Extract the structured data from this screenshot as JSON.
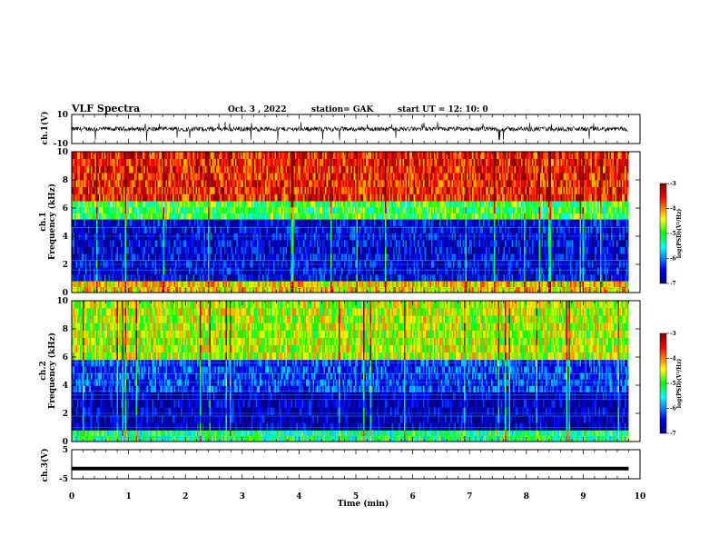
{
  "header": {
    "title": "VLF Spectra",
    "date": "Oct. 3  , 2022",
    "station": "station= GAK",
    "start": "start  UT  =   12: 10: 0"
  },
  "chart_data": [
    {
      "type": "line",
      "name": "panel-ch1-waveform",
      "ylabel": "ch.1(V)",
      "ylim": [
        -10,
        10
      ],
      "yticks": [
        "10",
        "-10"
      ],
      "xlim": [
        0,
        10
      ],
      "baseline": 0,
      "description_values": "noisy waveform around 0 V with spikes to about -8 V"
    },
    {
      "type": "heatmap",
      "name": "panel-ch1-spectrogram",
      "ylabel": "ch.1\nFrequency (kHz)",
      "ylabel_line1": "ch.1",
      "ylabel_line2": "Frequency (kHz)",
      "ylim": [
        0,
        10
      ],
      "yticks": [
        "0",
        "2",
        "4",
        "6",
        "8",
        "10"
      ],
      "xlim": [
        0,
        9.8
      ],
      "colorbar": {
        "label": "log(PSD)(V²/Hz)",
        "range": [
          -7,
          -3
        ],
        "ticks": [
          "-3",
          "-4",
          "-5",
          "-6",
          "-7"
        ]
      },
      "bands": [
        {
          "from_khz": 0,
          "to_khz": 0.8,
          "level": -4.3
        },
        {
          "from_khz": 0.8,
          "to_khz": 5.2,
          "level": -6.6
        },
        {
          "from_khz": 5.2,
          "to_khz": 6.5,
          "level": -5.0
        },
        {
          "from_khz": 6.5,
          "to_khz": 10,
          "level": -3.6
        }
      ]
    },
    {
      "type": "heatmap",
      "name": "panel-ch2-spectrogram",
      "ylabel_line1": "ch.2",
      "ylabel_line2": "Frequency (kHz)",
      "ylim": [
        0,
        10
      ],
      "yticks": [
        "0",
        "2",
        "4",
        "6",
        "8",
        "10"
      ],
      "xlim": [
        0,
        9.8
      ],
      "colorbar": {
        "label": "log(PSD)(V²/Hz)",
        "range": [
          -7,
          -3
        ],
        "ticks": [
          "-3",
          "-4",
          "-5",
          "-6",
          "-7"
        ]
      },
      "bands": [
        {
          "from_khz": 0,
          "to_khz": 0.8,
          "level": -5.2
        },
        {
          "from_khz": 0.8,
          "to_khz": 3.5,
          "level": -6.8
        },
        {
          "from_khz": 3.5,
          "to_khz": 5.8,
          "level": -6.3
        },
        {
          "from_khz": 5.8,
          "to_khz": 10,
          "level": -4.6
        }
      ]
    },
    {
      "type": "line",
      "name": "panel-ch3-waveform",
      "ylabel": "ch.3(V)",
      "ylim": [
        -5,
        5
      ],
      "yticks": [
        "5",
        "-5"
      ],
      "xlim": [
        0,
        9.8
      ],
      "constant_value": -1.5
    }
  ],
  "xaxis": {
    "label": "Time  (min)",
    "ticks": [
      "0",
      "1",
      "2",
      "3",
      "4",
      "5",
      "6",
      "7",
      "8",
      "9",
      "10"
    ],
    "range": [
      0,
      10
    ]
  },
  "colors": {
    "colormap": [
      "#000080",
      "#0000ff",
      "#00ffff",
      "#00ff00",
      "#ffff00",
      "#ff0000",
      "#800000"
    ]
  }
}
